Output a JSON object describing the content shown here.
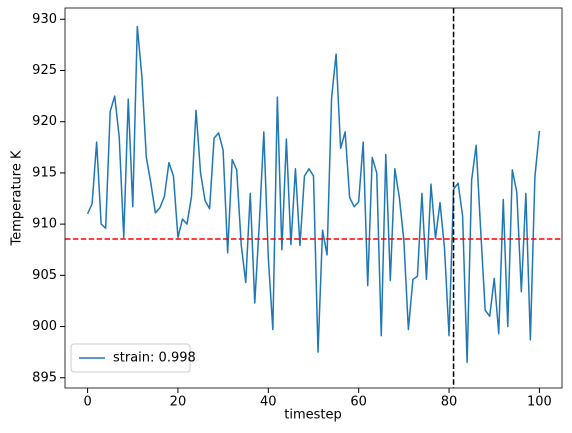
{
  "chart_data": {
    "type": "line",
    "xlabel": "timestep",
    "ylabel": "Temperature K",
    "x": [
      0,
      1,
      2,
      3,
      4,
      5,
      6,
      7,
      8,
      9,
      10,
      11,
      12,
      13,
      14,
      15,
      16,
      17,
      18,
      19,
      20,
      21,
      22,
      23,
      24,
      25,
      26,
      27,
      28,
      29,
      30,
      31,
      32,
      33,
      34,
      35,
      36,
      37,
      38,
      39,
      40,
      41,
      42,
      43,
      44,
      45,
      46,
      47,
      48,
      49,
      50,
      51,
      52,
      53,
      54,
      55,
      56,
      57,
      58,
      59,
      60,
      61,
      62,
      63,
      64,
      65,
      66,
      67,
      68,
      69,
      70,
      71,
      72,
      73,
      74,
      75,
      76,
      77,
      78,
      79,
      80,
      81,
      82,
      83,
      84,
      85,
      86,
      87,
      88,
      89,
      90,
      91,
      92,
      93,
      94,
      95,
      96,
      97,
      98,
      99,
      100
    ],
    "series": [
      {
        "name": "strain: 0.998",
        "color": "#1f77b4",
        "values": [
          911,
          912,
          918,
          910,
          909.6,
          921,
          922.5,
          918.5,
          908.7,
          922.2,
          911.7,
          929.3,
          924.5,
          916.5,
          914,
          911.1,
          911.6,
          912.7,
          916,
          914.7,
          908.7,
          910.5,
          910,
          912.7,
          921.1,
          915,
          912.3,
          911.5,
          918.4,
          918.9,
          917.2,
          907.2,
          916.3,
          915.3,
          908,
          904.3,
          913,
          902.3,
          910,
          919,
          906.7,
          899.7,
          922.4,
          907.5,
          918.3,
          908,
          915.4,
          907.9,
          914.7,
          915.4,
          914.7,
          897.5,
          909.4,
          907,
          922.3,
          926.6,
          917.4,
          919,
          912.6,
          911.7,
          912.2,
          918,
          904,
          916.5,
          915,
          899.1,
          916.8,
          904.5,
          915.4,
          912.6,
          908.4,
          899.7,
          904.6,
          904.9,
          913,
          904.6,
          913.9,
          908.6,
          912.1,
          907.6,
          899.1,
          913.4,
          914,
          910.8,
          896.5,
          914.3,
          917.7,
          909.4,
          901.6,
          901,
          904.7,
          899.3,
          912.4,
          900,
          915.3,
          913.1,
          903.4,
          913,
          898.7,
          914.6,
          919.1
        ]
      }
    ],
    "hline": 908.55,
    "hline_color": "#ff0000",
    "vline": 81,
    "vline_color": "#000000",
    "xlim": [
      -5,
      105
    ],
    "ylim": [
      894.0,
      931.1
    ],
    "xticks": [
      0,
      20,
      40,
      60,
      80,
      100
    ],
    "yticks": [
      895,
      900,
      905,
      910,
      915,
      920,
      925,
      930
    ],
    "legend": "lower left",
    "grid": false
  }
}
